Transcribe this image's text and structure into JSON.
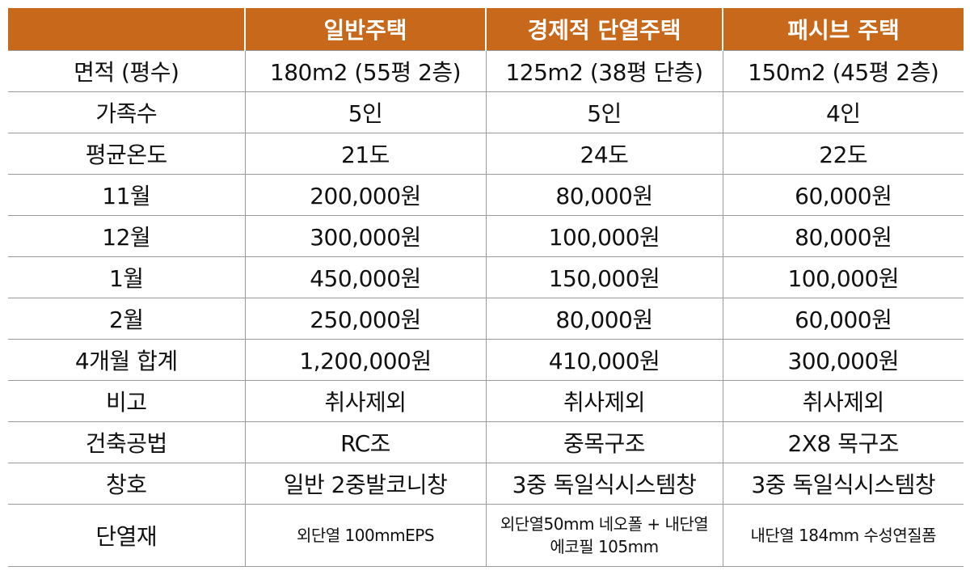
{
  "table": {
    "header": [
      "",
      "일반주택",
      "경제적 단열주택",
      "패시브 주택"
    ],
    "rows": [
      [
        "면적 (평수)",
        "180m2 (55평 2층)",
        "125m2 (38평 단층)",
        "150m2 (45평 2층)"
      ],
      [
        "가족수",
        "5인",
        "5인",
        "4인"
      ],
      [
        "평균온도",
        "21도",
        "24도",
        "22도"
      ],
      [
        "11월",
        "200,000원",
        "80,000원",
        "60,000원"
      ],
      [
        "12월",
        "300,000원",
        "100,000원",
        "80,000원"
      ],
      [
        "1월",
        "450,000원",
        "150,000원",
        "100,000원"
      ],
      [
        "2월",
        "250,000원",
        "80,000원",
        "60,000원"
      ],
      [
        "4개월 합계",
        "1,200,000원",
        "410,000원",
        "300,000원"
      ],
      [
        "비고",
        "취사제외",
        "취사제외",
        "취사제외"
      ],
      [
        "건축공법",
        "RC조",
        "중목구조",
        "2X8 목구조"
      ],
      [
        "창호",
        "일반 2중발코니창",
        "3중 독일식시스템창",
        "3중 독일식시스템창"
      ],
      [
        "단열재",
        "외단열 100mmEPS",
        "외단열50mm 네오폴 + 내단열 에코필 105mm",
        "내단열 184mm 수성연질폼"
      ]
    ]
  },
  "colors": {
    "header_bg": "#c7681a",
    "header_text": "#ffffff",
    "grid_line": "#9a9a9a"
  }
}
